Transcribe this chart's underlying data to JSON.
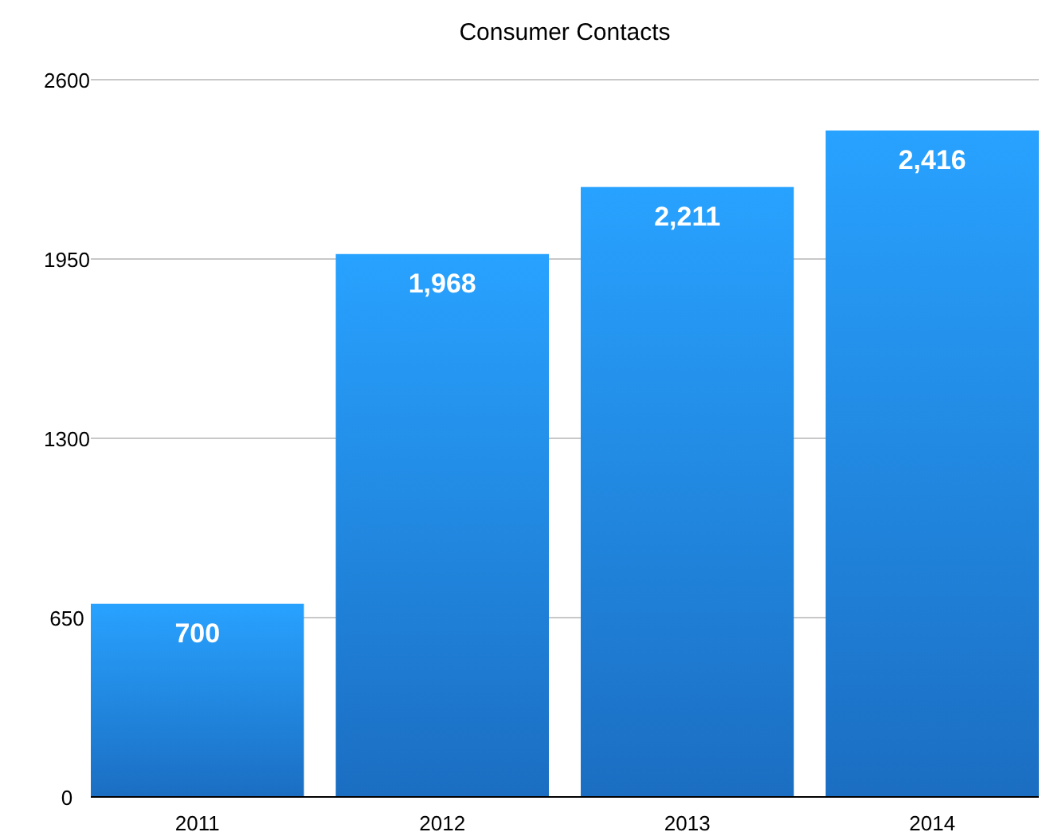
{
  "chart_data": {
    "type": "bar",
    "title": "Consumer Contacts",
    "categories": [
      "2011",
      "2012",
      "2013",
      "2014"
    ],
    "values": [
      700,
      1968,
      2211,
      2416
    ],
    "value_labels": [
      "700",
      "1,968",
      "2,211",
      "2,416"
    ],
    "color": "#1e7ad8",
    "ylim": [
      0,
      2600
    ],
    "yticks": [
      0,
      650,
      1300,
      1950,
      2600
    ],
    "grid": "y"
  }
}
